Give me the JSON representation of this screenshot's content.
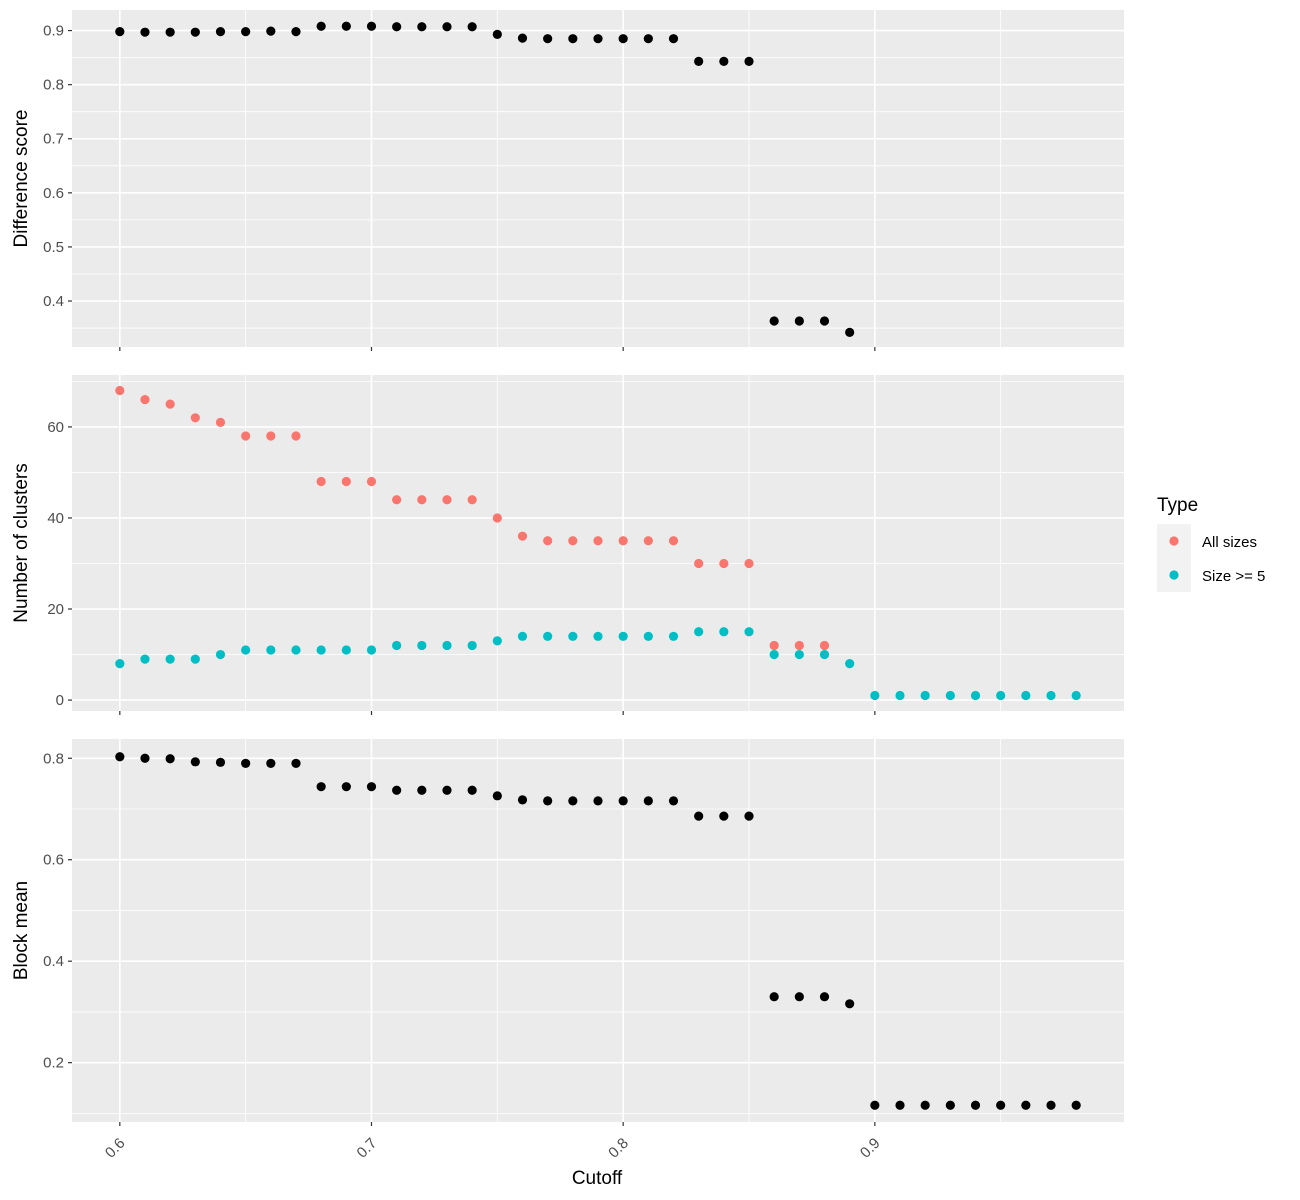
{
  "chart_data": {
    "type": "scatter",
    "xlabel": "Cutoff",
    "x_ticks": [
      "0.6",
      "0.7",
      "0.8",
      "0.9"
    ],
    "x_tick_values": [
      0.6,
      0.7,
      0.8,
      0.9
    ],
    "xlim": [
      0.581,
      0.999
    ],
    "background": "#EBEBEB",
    "grid": true,
    "legend": {
      "title": "Type",
      "position": "right",
      "entries": [
        {
          "label": "All sizes",
          "color": "#F8766D"
        },
        {
          "label": "Size >= 5",
          "color": "#00BFC4"
        }
      ]
    },
    "panels": [
      {
        "ylabel": "Difference score",
        "ylim": [
          0.315,
          0.938
        ],
        "y_ticks": [
          "0.4",
          "0.5",
          "0.6",
          "0.7",
          "0.8",
          "0.9"
        ],
        "y_tick_values": [
          0.4,
          0.5,
          0.6,
          0.7,
          0.8,
          0.9
        ],
        "series": [
          {
            "color": "#000000",
            "x": [
              0.6,
              0.61,
              0.62,
              0.63,
              0.64,
              0.65,
              0.66,
              0.67,
              0.68,
              0.69,
              0.7,
              0.71,
              0.72,
              0.73,
              0.74,
              0.75,
              0.76,
              0.77,
              0.78,
              0.79,
              0.8,
              0.81,
              0.82,
              0.83,
              0.84,
              0.85,
              0.86,
              0.87,
              0.88,
              0.89
            ],
            "y": [
              0.898,
              0.897,
              0.897,
              0.897,
              0.898,
              0.898,
              0.899,
              0.898,
              0.908,
              0.908,
              0.908,
              0.907,
              0.907,
              0.907,
              0.907,
              0.893,
              0.886,
              0.885,
              0.885,
              0.885,
              0.885,
              0.885,
              0.885,
              0.843,
              0.843,
              0.843,
              0.363,
              0.363,
              0.363,
              0.342
            ]
          }
        ]
      },
      {
        "ylabel": "Number of clusters",
        "ylim": [
          -2.4,
          71.4
        ],
        "y_ticks": [
          "0",
          "20",
          "40",
          "60"
        ],
        "y_tick_values": [
          0,
          20,
          40,
          60
        ],
        "series": [
          {
            "name": "All sizes",
            "color": "#F8766D",
            "x": [
              0.6,
              0.61,
              0.62,
              0.63,
              0.64,
              0.65,
              0.66,
              0.67,
              0.68,
              0.69,
              0.7,
              0.71,
              0.72,
              0.73,
              0.74,
              0.75,
              0.76,
              0.77,
              0.78,
              0.79,
              0.8,
              0.81,
              0.82,
              0.83,
              0.84,
              0.85,
              0.86,
              0.87,
              0.88
            ],
            "y": [
              68,
              66,
              65,
              62,
              61,
              58,
              58,
              58,
              48,
              48,
              48,
              44,
              44,
              44,
              44,
              40,
              36,
              35,
              35,
              35,
              35,
              35,
              35,
              30,
              30,
              30,
              12,
              12,
              12
            ]
          },
          {
            "name": "Size >= 5",
            "color": "#00BFC4",
            "x": [
              0.6,
              0.61,
              0.62,
              0.63,
              0.64,
              0.65,
              0.66,
              0.67,
              0.68,
              0.69,
              0.7,
              0.71,
              0.72,
              0.73,
              0.74,
              0.75,
              0.76,
              0.77,
              0.78,
              0.79,
              0.8,
              0.81,
              0.82,
              0.83,
              0.84,
              0.85,
              0.86,
              0.87,
              0.88,
              0.89,
              0.9,
              0.91,
              0.92,
              0.93,
              0.94,
              0.95,
              0.96,
              0.97,
              0.98
            ],
            "y": [
              8,
              9,
              9,
              9,
              10,
              11,
              11,
              11,
              11,
              11,
              11,
              12,
              12,
              12,
              12,
              13,
              14,
              14,
              14,
              14,
              14,
              14,
              14,
              15,
              15,
              15,
              10,
              10,
              10,
              8,
              1,
              1,
              1,
              1,
              1,
              1,
              1,
              1,
              1
            ]
          }
        ]
      },
      {
        "ylabel": "Block mean",
        "ylim": [
          0.083,
          0.838
        ],
        "y_ticks": [
          "0.2",
          "0.4",
          "0.6",
          "0.8"
        ],
        "y_tick_values": [
          0.2,
          0.4,
          0.6,
          0.8
        ],
        "series": [
          {
            "color": "#000000",
            "x": [
              0.6,
              0.61,
              0.62,
              0.63,
              0.64,
              0.65,
              0.66,
              0.67,
              0.68,
              0.69,
              0.7,
              0.71,
              0.72,
              0.73,
              0.74,
              0.75,
              0.76,
              0.77,
              0.78,
              0.79,
              0.8,
              0.81,
              0.82,
              0.83,
              0.84,
              0.85,
              0.86,
              0.87,
              0.88,
              0.89,
              0.9,
              0.91,
              0.92,
              0.93,
              0.94,
              0.95,
              0.96,
              0.97,
              0.98
            ],
            "y": [
              0.803,
              0.8,
              0.799,
              0.793,
              0.792,
              0.79,
              0.79,
              0.79,
              0.744,
              0.744,
              0.744,
              0.737,
              0.737,
              0.737,
              0.737,
              0.726,
              0.718,
              0.716,
              0.716,
              0.716,
              0.716,
              0.716,
              0.716,
              0.686,
              0.686,
              0.686,
              0.33,
              0.33,
              0.33,
              0.316,
              0.116,
              0.116,
              0.116,
              0.116,
              0.116,
              0.116,
              0.116,
              0.116,
              0.116
            ]
          }
        ]
      }
    ]
  }
}
